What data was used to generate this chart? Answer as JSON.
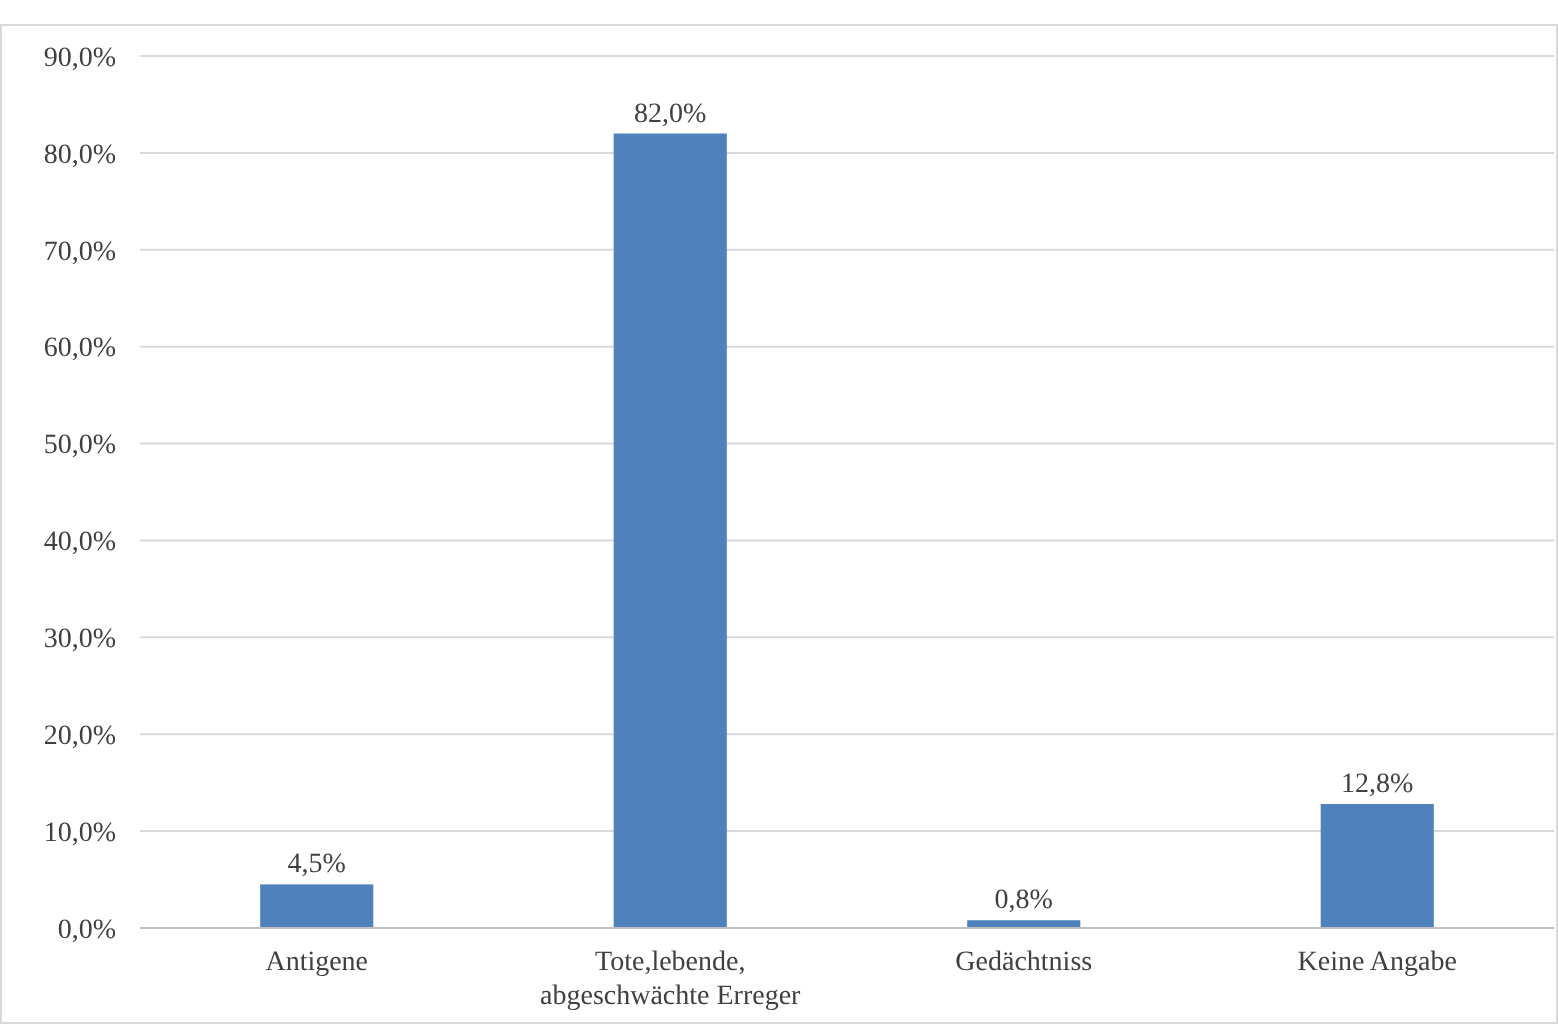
{
  "chart_data": {
    "type": "bar",
    "categories": [
      "Antigene",
      "Tote,lebende, abgeschwächte Erreger",
      "Gedächtniss",
      "Keine Angabe"
    ],
    "values": [
      4.5,
      82.0,
      0.8,
      12.8
    ],
    "color": "#4f81bd",
    "value_labels": [
      "4,5%",
      "82,0%",
      "0,8%",
      "12,8%"
    ],
    "ylim": [
      0,
      90
    ],
    "yticks": [
      {
        "value": 0,
        "label": "0,0%"
      },
      {
        "value": 10,
        "label": "10,0%"
      },
      {
        "value": 20,
        "label": "20,0%"
      },
      {
        "value": 30,
        "label": "30,0%"
      },
      {
        "value": 40,
        "label": "40,0%"
      },
      {
        "value": 50,
        "label": "50,0%"
      },
      {
        "value": 60,
        "label": "60,0%"
      },
      {
        "value": 70,
        "label": "70,0%"
      },
      {
        "value": 80,
        "label": "80,0%"
      },
      {
        "value": 90,
        "label": "90,0%"
      }
    ],
    "grid": "y"
  }
}
